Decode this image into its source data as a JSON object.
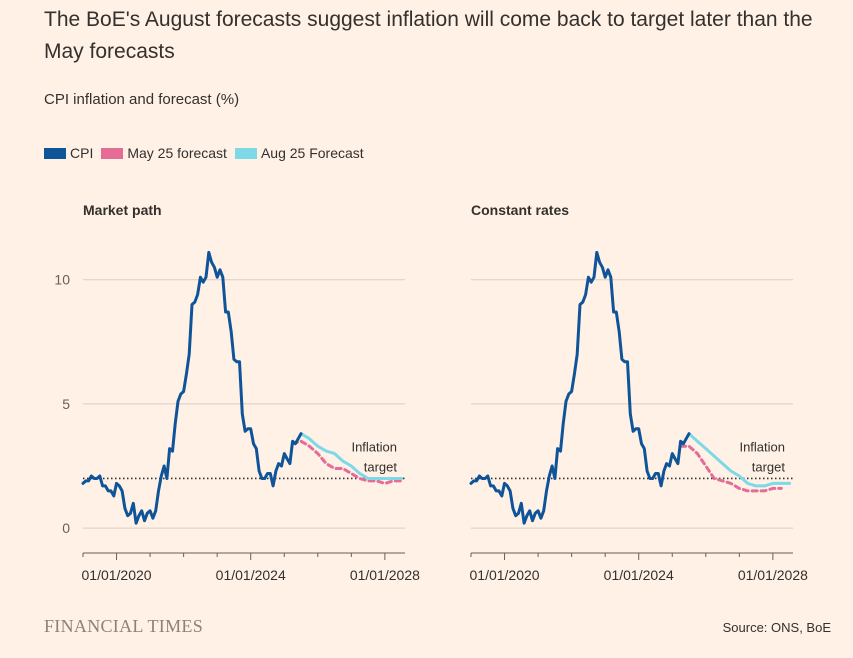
{
  "title": "The BoE's August forecasts suggest inflation will come back to target later than the May forecasts",
  "subtitle": "CPI inflation and forecast (%)",
  "legend": [
    {
      "label": "CPI",
      "color": "#0f5499"
    },
    {
      "label": "May 25 forecast",
      "color": "#e46d97"
    },
    {
      "label": "Aug 25 Forecast",
      "color": "#7dd8e8"
    }
  ],
  "source": "Source: ONS, BoE",
  "brand": "FINANCIAL TIMES",
  "chart_data": [
    {
      "type": "line",
      "title": "Market path",
      "xlim": [
        2019.0,
        2028.6
      ],
      "ylim": [
        -1,
        12
      ],
      "yticks": [
        0,
        5,
        10
      ],
      "ytick_labels": [
        "0",
        "5",
        "10"
      ],
      "xticks": [
        2020.0,
        2024.0,
        2028.0
      ],
      "xtick_labels": [
        "01/01/2020",
        "01/01/2024",
        "01/01/2028"
      ],
      "target": 2,
      "target_label": [
        "Inflation",
        "target"
      ],
      "series": [
        {
          "name": "CPI",
          "color": "#0f5499",
          "x": [
            2019.0,
            2019.083,
            2019.167,
            2019.25,
            2019.333,
            2019.417,
            2019.5,
            2019.583,
            2019.667,
            2019.75,
            2019.833,
            2019.917,
            2020.0,
            2020.083,
            2020.167,
            2020.25,
            2020.333,
            2020.417,
            2020.5,
            2020.583,
            2020.667,
            2020.75,
            2020.833,
            2020.917,
            2021.0,
            2021.083,
            2021.167,
            2021.25,
            2021.333,
            2021.417,
            2021.5,
            2021.583,
            2021.667,
            2021.75,
            2021.833,
            2021.917,
            2022.0,
            2022.083,
            2022.167,
            2022.25,
            2022.333,
            2022.417,
            2022.5,
            2022.583,
            2022.667,
            2022.75,
            2022.833,
            2022.917,
            2023.0,
            2023.083,
            2023.167,
            2023.25,
            2023.333,
            2023.417,
            2023.5,
            2023.583,
            2023.667,
            2023.75,
            2023.833,
            2023.917,
            2024.0,
            2024.083,
            2024.167,
            2024.25,
            2024.333,
            2024.417,
            2024.5,
            2024.583,
            2024.667,
            2024.75,
            2024.833,
            2024.917,
            2025.0,
            2025.083,
            2025.167,
            2025.25,
            2025.333,
            2025.417,
            2025.5
          ],
          "y": [
            1.8,
            1.9,
            1.9,
            2.1,
            2.0,
            2.0,
            2.1,
            1.7,
            1.7,
            1.5,
            1.5,
            1.3,
            1.8,
            1.7,
            1.5,
            0.8,
            0.5,
            0.6,
            1.0,
            0.2,
            0.5,
            0.7,
            0.3,
            0.6,
            0.7,
            0.4,
            0.7,
            1.5,
            2.1,
            2.5,
            2.0,
            3.2,
            3.1,
            4.2,
            5.1,
            5.4,
            5.5,
            6.2,
            7.0,
            9.0,
            9.1,
            9.4,
            10.1,
            9.9,
            10.1,
            11.1,
            10.7,
            10.5,
            10.1,
            10.4,
            10.1,
            8.7,
            8.7,
            7.9,
            6.8,
            6.7,
            6.7,
            4.6,
            3.9,
            4.0,
            4.0,
            3.4,
            3.2,
            2.3,
            2.0,
            2.0,
            2.2,
            2.2,
            1.7,
            2.3,
            2.6,
            2.5,
            3.0,
            2.8,
            2.6,
            3.5,
            3.4,
            3.6,
            3.8
          ]
        },
        {
          "name": "May 25 forecast",
          "color": "#e46d97",
          "dashed": true,
          "x": [
            2025.25,
            2025.5,
            2025.75,
            2026.0,
            2026.25,
            2026.5,
            2026.75,
            2027.0,
            2027.25,
            2027.5,
            2027.75,
            2028.0,
            2028.25,
            2028.5
          ],
          "y": [
            3.4,
            3.5,
            3.3,
            3.0,
            2.6,
            2.4,
            2.4,
            2.2,
            2.0,
            1.9,
            1.9,
            1.8,
            1.9,
            1.9
          ]
        },
        {
          "name": "Aug 25 Forecast",
          "color": "#7dd8e8",
          "x": [
            2025.5,
            2025.75,
            2026.0,
            2026.25,
            2026.5,
            2026.75,
            2027.0,
            2027.25,
            2027.5,
            2027.75,
            2028.0,
            2028.25,
            2028.5
          ],
          "y": [
            3.8,
            3.6,
            3.3,
            3.1,
            3.0,
            2.7,
            2.5,
            2.2,
            2.0,
            2.0,
            2.0,
            2.0,
            2.0
          ]
        }
      ]
    },
    {
      "type": "line",
      "title": "Constant rates",
      "xlim": [
        2019.0,
        2028.6
      ],
      "ylim": [
        -1,
        12
      ],
      "yticks": [
        0,
        5,
        10
      ],
      "ytick_labels": [
        "",
        "",
        ""
      ],
      "xticks": [
        2020.0,
        2024.0,
        2028.0
      ],
      "xtick_labels": [
        "01/01/2020",
        "01/01/2024",
        "01/01/2028"
      ],
      "target": 2,
      "target_label": [
        "Inflation",
        "target"
      ],
      "series": [
        {
          "name": "CPI",
          "color": "#0f5499",
          "x": [
            2019.0,
            2019.083,
            2019.167,
            2019.25,
            2019.333,
            2019.417,
            2019.5,
            2019.583,
            2019.667,
            2019.75,
            2019.833,
            2019.917,
            2020.0,
            2020.083,
            2020.167,
            2020.25,
            2020.333,
            2020.417,
            2020.5,
            2020.583,
            2020.667,
            2020.75,
            2020.833,
            2020.917,
            2021.0,
            2021.083,
            2021.167,
            2021.25,
            2021.333,
            2021.417,
            2021.5,
            2021.583,
            2021.667,
            2021.75,
            2021.833,
            2021.917,
            2022.0,
            2022.083,
            2022.167,
            2022.25,
            2022.333,
            2022.417,
            2022.5,
            2022.583,
            2022.667,
            2022.75,
            2022.833,
            2022.917,
            2023.0,
            2023.083,
            2023.167,
            2023.25,
            2023.333,
            2023.417,
            2023.5,
            2023.583,
            2023.667,
            2023.75,
            2023.833,
            2023.917,
            2024.0,
            2024.083,
            2024.167,
            2024.25,
            2024.333,
            2024.417,
            2024.5,
            2024.583,
            2024.667,
            2024.75,
            2024.833,
            2024.917,
            2025.0,
            2025.083,
            2025.167,
            2025.25,
            2025.333,
            2025.417,
            2025.5
          ],
          "y": [
            1.8,
            1.9,
            1.9,
            2.1,
            2.0,
            2.0,
            2.1,
            1.7,
            1.7,
            1.5,
            1.5,
            1.3,
            1.8,
            1.7,
            1.5,
            0.8,
            0.5,
            0.6,
            1.0,
            0.2,
            0.5,
            0.7,
            0.3,
            0.6,
            0.7,
            0.4,
            0.7,
            1.5,
            2.1,
            2.5,
            2.0,
            3.2,
            3.1,
            4.2,
            5.1,
            5.4,
            5.5,
            6.2,
            7.0,
            9.0,
            9.1,
            9.4,
            10.1,
            9.9,
            10.1,
            11.1,
            10.7,
            10.5,
            10.1,
            10.4,
            10.1,
            8.7,
            8.7,
            7.9,
            6.8,
            6.7,
            6.7,
            4.6,
            3.9,
            4.0,
            4.0,
            3.4,
            3.2,
            2.3,
            2.0,
            2.0,
            2.2,
            2.2,
            1.7,
            2.3,
            2.6,
            2.5,
            3.0,
            2.8,
            2.6,
            3.5,
            3.4,
            3.6,
            3.8
          ]
        },
        {
          "name": "May 25 forecast",
          "color": "#e46d97",
          "dashed": true,
          "x": [
            2025.25,
            2025.5,
            2025.75,
            2026.0,
            2026.25,
            2026.5,
            2026.75,
            2027.0,
            2027.25,
            2027.5,
            2027.75,
            2028.0,
            2028.25
          ],
          "y": [
            3.3,
            3.3,
            3.0,
            2.5,
            2.0,
            1.9,
            1.8,
            1.6,
            1.5,
            1.5,
            1.5,
            1.6,
            1.6
          ]
        },
        {
          "name": "Aug 25 Forecast",
          "color": "#7dd8e8",
          "x": [
            2025.5,
            2025.75,
            2026.0,
            2026.25,
            2026.5,
            2026.75,
            2027.0,
            2027.25,
            2027.5,
            2027.75,
            2028.0,
            2028.25,
            2028.5
          ],
          "y": [
            3.8,
            3.5,
            3.2,
            2.9,
            2.6,
            2.3,
            2.1,
            1.8,
            1.7,
            1.7,
            1.8,
            1.8,
            1.8
          ]
        }
      ]
    }
  ]
}
